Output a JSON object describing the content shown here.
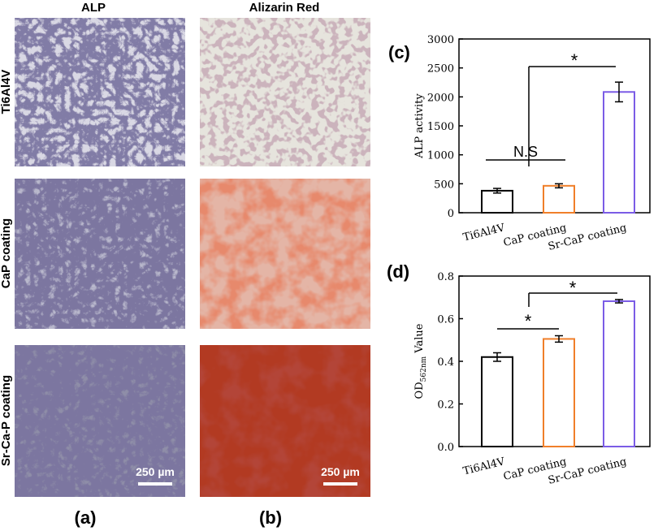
{
  "figure": {
    "column_headers": [
      "ALP",
      "Alizarin Red"
    ],
    "row_labels": [
      "Ti6Al4V",
      "CaP coating",
      "Sr-Ca-P coating"
    ],
    "scale_bars": [
      "250 µm",
      "250 µm"
    ],
    "panel_labels": [
      "(a)",
      "(b)",
      "(c)",
      "(d)"
    ]
  },
  "chart_data": [
    {
      "type": "bar",
      "y_label": "ALP activity",
      "categories": [
        "Ti6Al4V",
        "CaP coating",
        "Sr-CaP coating"
      ],
      "values": [
        380,
        465,
        2085
      ],
      "errors": [
        40,
        35,
        170
      ],
      "colors": [
        "#000000",
        "#f07f2a",
        "#7b5ce6"
      ],
      "ylim": [
        0,
        3000
      ],
      "yticks": [
        0,
        500,
        1000,
        1500,
        2000,
        2500,
        3000
      ],
      "annotations": [
        "N.S",
        "*"
      ]
    },
    {
      "type": "bar",
      "y_label": "OD",
      "y_label_sub": "562nm",
      "y_label_rest": " Value",
      "categories": [
        "Ti6Al4V",
        "CaP coating",
        "Sr-CaP coating"
      ],
      "values": [
        0.42,
        0.505,
        0.682
      ],
      "errors": [
        0.02,
        0.015,
        0.008
      ],
      "colors": [
        "#000000",
        "#f07f2a",
        "#7b5ce6"
      ],
      "ylim": [
        0,
        0.8
      ],
      "yticks": [
        {
          "value": 0,
          "label": "0.0"
        },
        0.2,
        0.4,
        0.6,
        0.8
      ],
      "annotations": [
        "*",
        "*"
      ]
    }
  ]
}
